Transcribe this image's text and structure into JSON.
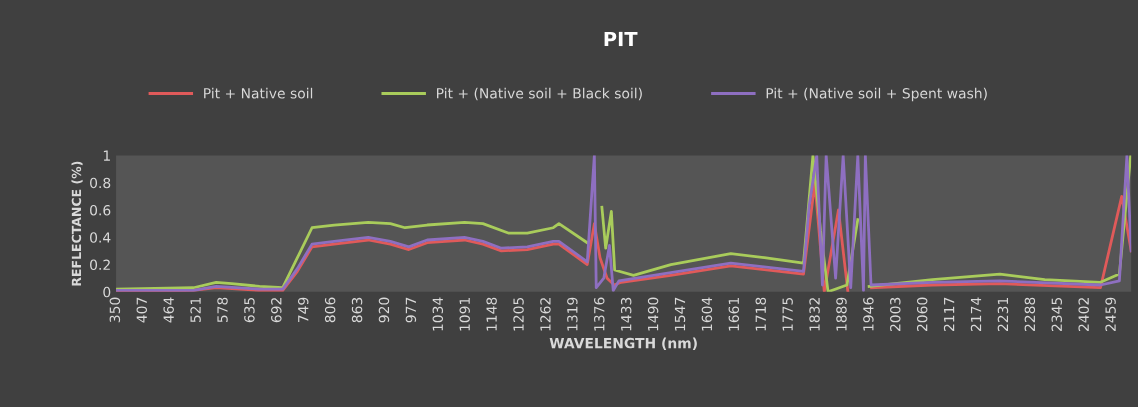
{
  "chart_data": {
    "type": "line",
    "title": "PIT",
    "xlabel": "WAVELENGTH (nm)",
    "ylabel": "REFLECTANCE (%)",
    "xlim": [
      350,
      2500
    ],
    "xticks": [
      350,
      407,
      464,
      521,
      578,
      635,
      692,
      749,
      806,
      863,
      920,
      977,
      1034,
      1091,
      1148,
      1205,
      1262,
      1319,
      1376,
      1433,
      1490,
      1547,
      1604,
      1661,
      1718,
      1775,
      1832,
      1889,
      1946,
      2003,
      2060,
      2117,
      2174,
      2231,
      2288,
      2345,
      2402,
      2459
    ],
    "ylim": [
      0,
      1
    ],
    "yticks": [
      0,
      0.2,
      0.4,
      0.6,
      0.8,
      1
    ],
    "grid": false,
    "legend": "top",
    "series": [
      {
        "name": "Pit + Native soil",
        "color": "#e05a5a",
        "x": [
          350,
          514,
          562,
          654,
          703,
          734,
          765,
          812,
          884,
          931,
          970,
          1009,
          1088,
          1127,
          1166,
          1221,
          1276,
          1288,
          1348,
          1363,
          1375,
          1390,
          1405,
          1420,
          1525,
          1652,
          1806,
          1830,
          1850,
          1880,
          1900,
          1935,
          1950,
          2079,
          2222,
          2435,
          2480,
          2500
        ],
        "values": [
          0.0,
          0.01,
          0.03,
          0.01,
          0.01,
          0.15,
          0.33,
          0.35,
          0.38,
          0.35,
          0.31,
          0.36,
          0.38,
          0.35,
          0.3,
          0.31,
          0.35,
          0.35,
          0.2,
          0.5,
          0.25,
          0.1,
          0.05,
          0.07,
          0.12,
          0.19,
          0.13,
          0.8,
          0.0,
          0.6,
          0.0,
          null,
          0.03,
          0.05,
          0.06,
          0.03,
          0.7,
          0.3
        ]
      },
      {
        "name": "Pit + (Native soil + Black soil)",
        "color": "#a9cc5b",
        "x": [
          350,
          514,
          562,
          595,
          654,
          703,
          734,
          765,
          812,
          884,
          931,
          962,
          1009,
          1088,
          1127,
          1182,
          1221,
          1276,
          1288,
          1348,
          1363,
          1379,
          1387,
          1399,
          1406,
          1446,
          1525,
          1652,
          1723,
          1806,
          1826,
          1842,
          1858,
          1898,
          1921,
          1937,
          1945,
          2079,
          2222,
          2317,
          2435,
          2475,
          2499
        ],
        "values": [
          0.02,
          0.03,
          0.07,
          0.06,
          0.04,
          0.03,
          0.25,
          0.47,
          0.49,
          0.51,
          0.5,
          0.47,
          0.49,
          0.51,
          0.5,
          0.43,
          0.43,
          0.47,
          0.5,
          0.36,
          null,
          0.62,
          0.32,
          0.59,
          0.16,
          0.12,
          0.2,
          0.28,
          0.25,
          0.21,
          1.0,
          0.45,
          0.0,
          0.05,
          0.53,
          null,
          0.04,
          0.09,
          0.13,
          0.09,
          0.07,
          0.13,
          1.0
        ]
      },
      {
        "name": "Pit + (Native soil + Spent wash)",
        "color": "#8e6fc1",
        "x": [
          350,
          514,
          562,
          654,
          703,
          734,
          765,
          812,
          884,
          931,
          970,
          1009,
          1088,
          1127,
          1166,
          1221,
          1276,
          1288,
          1348,
          1363,
          1367,
          1383,
          1395,
          1403,
          1415,
          1525,
          1652,
          1806,
          1818,
          1834,
          1846,
          1854,
          1874,
          1890,
          1906,
          1921,
          1933,
          1937,
          1949,
          2079,
          2222,
          2435,
          2475,
          2491,
          2500
        ],
        "values": [
          0.01,
          0.01,
          0.04,
          0.02,
          0.02,
          0.17,
          0.35,
          0.37,
          0.4,
          0.37,
          0.33,
          0.38,
          0.4,
          0.37,
          0.32,
          0.33,
          0.37,
          0.37,
          0.22,
          1.0,
          0.03,
          0.1,
          0.34,
          0.01,
          0.08,
          0.14,
          0.21,
          0.15,
          0.63,
          1.0,
          0.05,
          1.0,
          0.1,
          1.0,
          0.03,
          1.0,
          0.01,
          1.0,
          0.05,
          0.07,
          0.08,
          0.05,
          0.08,
          1.0,
          0.3
        ]
      }
    ]
  }
}
